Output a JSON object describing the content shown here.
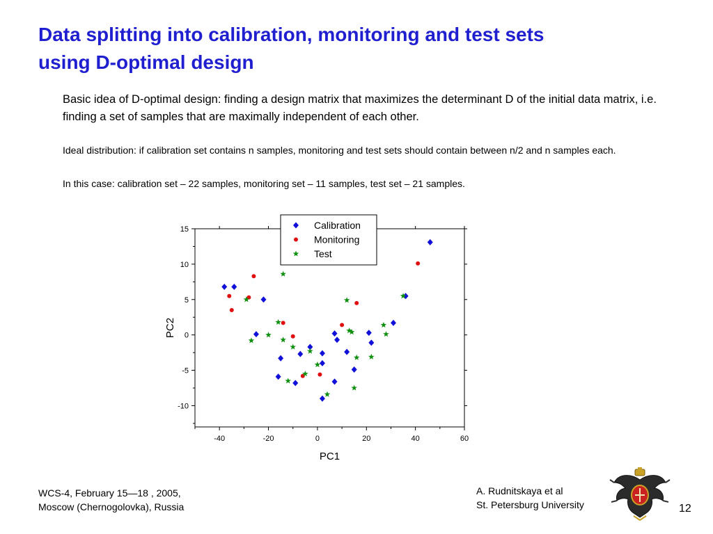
{
  "slide": {
    "title_line1": "Data splitting into calibration, monitoring and test sets",
    "title_line2": "using D-optimal design",
    "intro": "Basic idea of D-optimal design: finding a design matrix that maximizes the determinant D of the initial data matrix, i.e. finding a set of samples that are maximally independent of each other.",
    "ideal": "Ideal distribution: if calibration set contains n samples, monitoring and test sets should contain between n/2 and n samples  each.",
    "case": "In this case: calibration set – 22 samples, monitoring set – 11 samples, test set – 21 samples.",
    "footer_left_line1": "WCS-4, February 15—18 , 2005,",
    "footer_left_line2": "Moscow (Chernogolovka), Russia",
    "footer_right_line1": "A. Rudnitskaya et al",
    "footer_right_line2": "St. Petersburg University",
    "page_number": "12",
    "logo_icon": "university-coat-of-arms-icon"
  },
  "chart_data": {
    "type": "scatter",
    "xlabel": "PC1",
    "ylabel": "PC2",
    "xlim": [
      -50,
      60
    ],
    "ylim": [
      -13,
      15
    ],
    "xticks": [
      -40,
      -20,
      0,
      20,
      40,
      60
    ],
    "yticks": [
      -10,
      -5,
      0,
      5,
      10,
      15
    ],
    "legend_position": "top-center",
    "grid": false,
    "series": [
      {
        "name": "Calibration",
        "marker": "diamond",
        "color": "#1010d8",
        "x": [
          -38,
          -34,
          -22,
          -25,
          -15,
          -16,
          -9,
          -7,
          -3,
          2,
          2,
          7,
          8,
          7,
          12,
          15,
          21,
          22,
          31,
          36,
          46,
          2
        ],
        "y": [
          6.8,
          6.8,
          5.0,
          0.1,
          -3.3,
          -5.9,
          -6.8,
          -2.7,
          -1.7,
          -2.6,
          -4.0,
          0.2,
          -0.7,
          -6.6,
          -2.4,
          -4.9,
          0.3,
          -1.1,
          1.7,
          5.5,
          13.1,
          -9.0
        ]
      },
      {
        "name": "Monitoring",
        "marker": "circle",
        "color": "#e01010",
        "x": [
          -36,
          -26,
          -28,
          -35,
          -14,
          -10,
          -6,
          1,
          10,
          16,
          41
        ],
        "y": [
          5.5,
          8.3,
          5.3,
          3.5,
          1.7,
          -0.2,
          -5.8,
          -5.6,
          1.4,
          4.5,
          10.1
        ]
      },
      {
        "name": "Test",
        "marker": "star",
        "color": "#109010",
        "x": [
          -29,
          -27,
          -20,
          -16,
          -14,
          -14,
          -12,
          -10,
          -5,
          -3,
          0,
          4,
          12,
          13,
          14,
          16,
          15,
          22,
          27,
          28,
          35
        ],
        "y": [
          5.0,
          -0.8,
          0.0,
          1.8,
          8.6,
          -0.7,
          -6.5,
          -1.7,
          -5.5,
          -2.3,
          -4.2,
          -8.4,
          4.9,
          0.6,
          0.4,
          -3.2,
          -7.5,
          -3.1,
          1.4,
          0.1,
          5.5
        ]
      }
    ]
  }
}
